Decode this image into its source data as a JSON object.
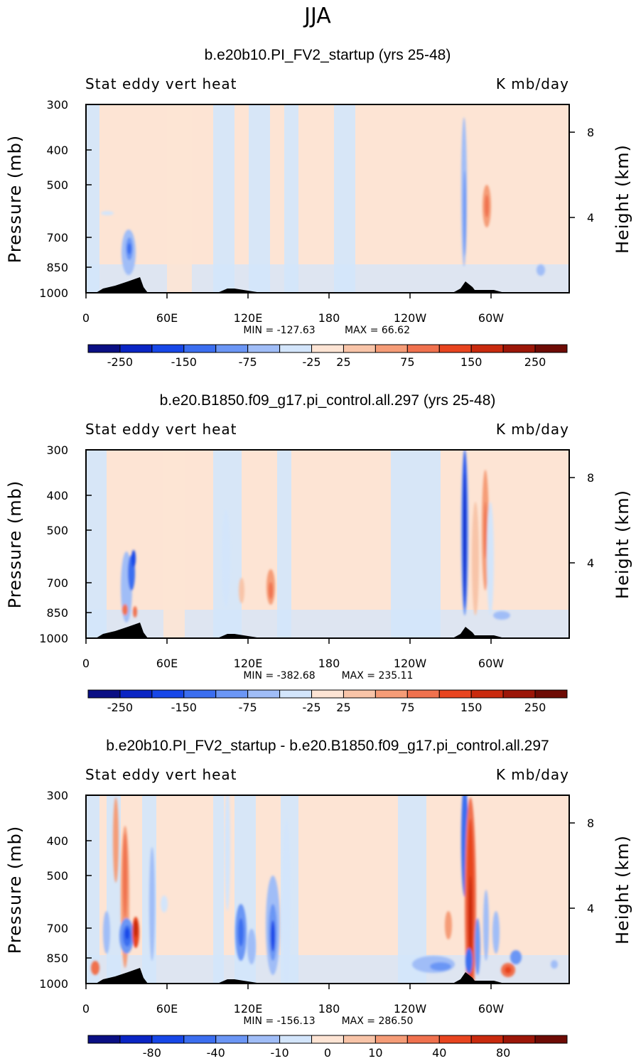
{
  "figure_title": "JJA",
  "chart_data": [
    {
      "type": "heatmap",
      "title": "b.e20b10.PI_FV2_startup (yrs 25-48)",
      "variable_label": "Stat eddy vert heat",
      "units_label": "K mb/day",
      "xlabel": "",
      "ylabel": "Pressure (mb)",
      "y2label": "Height (km)",
      "x_ticks": [
        "0",
        "60E",
        "120E",
        "180",
        "120W",
        "60W"
      ],
      "y_ticks": [
        "300",
        "400",
        "500",
        "700",
        "850",
        "1000"
      ],
      "y2_ticks": [
        "8",
        "4"
      ],
      "min_text": "MIN = -127.63",
      "max_text": "MAX = 66.62",
      "colorbar_labels": [
        "-250",
        "-150",
        "-75",
        "-25",
        "25",
        "75",
        "150",
        "250"
      ],
      "colorbar_colors": [
        "#0a0f84",
        "#0a25c4",
        "#1747e8",
        "#3b6ef0",
        "#6b96f5",
        "#a0bdf7",
        "#d3e5fb",
        "#fde4d4",
        "#f8c4a8",
        "#f59c77",
        "#f0714e",
        "#e8441f",
        "#c92a0e",
        "#9c1608",
        "#6e0b05"
      ],
      "value_range": [
        -127.63,
        66.62
      ]
    },
    {
      "type": "heatmap",
      "title": "b.e20.B1850.f09_g17.pi_control.all.297 (yrs 25-48)",
      "variable_label": "Stat eddy vert heat",
      "units_label": "K mb/day",
      "xlabel": "",
      "ylabel": "Pressure (mb)",
      "y2label": "Height (km)",
      "x_ticks": [
        "0",
        "60E",
        "120E",
        "180",
        "120W",
        "60W"
      ],
      "y_ticks": [
        "300",
        "400",
        "500",
        "700",
        "850",
        "1000"
      ],
      "y2_ticks": [
        "8",
        "4"
      ],
      "min_text": "MIN = -382.68",
      "max_text": "MAX = 235.11",
      "colorbar_labels": [
        "-250",
        "-150",
        "-75",
        "-25",
        "25",
        "75",
        "150",
        "250"
      ],
      "colorbar_colors": [
        "#0a0f84",
        "#0a25c4",
        "#1747e8",
        "#3b6ef0",
        "#6b96f5",
        "#a0bdf7",
        "#d3e5fb",
        "#fde4d4",
        "#f8c4a8",
        "#f59c77",
        "#f0714e",
        "#e8441f",
        "#c92a0e",
        "#9c1608",
        "#6e0b05"
      ],
      "value_range": [
        -382.68,
        235.11
      ]
    },
    {
      "type": "heatmap",
      "title": "b.e20b10.PI_FV2_startup - b.e20.B1850.f09_g17.pi_control.all.297",
      "variable_label": "Stat eddy vert heat",
      "units_label": "K mb/day",
      "xlabel": "",
      "ylabel": "Pressure (mb)",
      "y2label": "Height (km)",
      "x_ticks": [
        "0",
        "60E",
        "120E",
        "180",
        "120W",
        "60W"
      ],
      "y_ticks": [
        "300",
        "400",
        "500",
        "700",
        "850",
        "1000"
      ],
      "y2_ticks": [
        "8",
        "4"
      ],
      "min_text": "MIN = -156.13",
      "max_text": "MAX = 286.50",
      "colorbar_labels": [
        "-80",
        "-40",
        "-10",
        "0",
        "10",
        "40",
        "80"
      ],
      "colorbar_colors": [
        "#0a0f84",
        "#0a25c4",
        "#1747e8",
        "#3b6ef0",
        "#6b96f5",
        "#a0bdf7",
        "#d3e5fb",
        "#fde4d4",
        "#f8c4a8",
        "#f59c77",
        "#f0714e",
        "#e8441f",
        "#c92a0e",
        "#9c1608",
        "#6e0b05"
      ],
      "value_range": [
        -156.13,
        286.5
      ]
    }
  ]
}
